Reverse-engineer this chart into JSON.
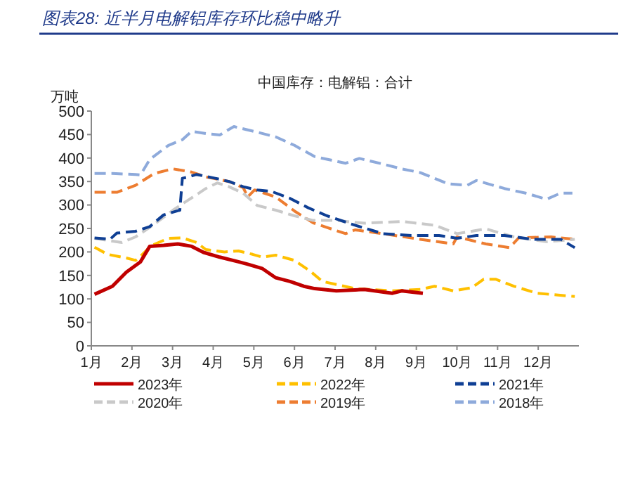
{
  "chart_data": {
    "type": "line",
    "title": "图表28: 近半月电解铝库存环比稳中略升",
    "subtitle": "中国库存：电解铝：合计",
    "ylabel": "万吨",
    "xlim": [
      1,
      13
    ],
    "xticks": [
      {
        "value": 1,
        "label": "1月"
      },
      {
        "value": 2,
        "label": "2月"
      },
      {
        "value": 3,
        "label": "3月"
      },
      {
        "value": 4,
        "label": "4月"
      },
      {
        "value": 5,
        "label": "5月"
      },
      {
        "value": 6,
        "label": "6月"
      },
      {
        "value": 7,
        "label": "7月"
      },
      {
        "value": 8,
        "label": "8月"
      },
      {
        "value": 9,
        "label": "9月"
      },
      {
        "value": 10,
        "label": "10月"
      },
      {
        "value": 11,
        "label": "11月"
      },
      {
        "value": 12,
        "label": "12月"
      }
    ],
    "ylim": [
      0,
      500
    ],
    "yticks": [
      0,
      50,
      100,
      150,
      200,
      250,
      300,
      350,
      400,
      450,
      500
    ],
    "legend": "bottom",
    "series": [
      {
        "name": "2023年",
        "color": "#c00000",
        "line_style": "solid",
        "x": [
          1.08,
          1.52,
          1.86,
          2.21,
          2.44,
          2.78,
          3.13,
          3.47,
          3.76,
          4.16,
          4.62,
          4.85,
          5.2,
          5.54,
          5.89,
          6.23,
          6.5,
          7.03,
          7.72,
          8.41,
          8.64,
          9.16
        ],
        "values": [
          110,
          127,
          157,
          179,
          212,
          214,
          217,
          212,
          199,
          189,
          179,
          174,
          165,
          145,
          137,
          127,
          122,
          117,
          120,
          112,
          117,
          112
        ]
      },
      {
        "name": "2022年",
        "color": "#ffc000",
        "line_style": "dashed",
        "x": [
          1.08,
          1.4,
          1.86,
          2.09,
          2.26,
          2.49,
          2.9,
          3.24,
          3.59,
          3.82,
          4.28,
          4.62,
          4.97,
          5.2,
          5.54,
          6.0,
          6.4,
          6.69,
          7.49,
          8.41,
          9.1,
          9.45,
          9.91,
          10.37,
          10.66,
          10.95,
          11.4,
          11.98,
          12.9
        ],
        "values": [
          210,
          195,
          187,
          182,
          195,
          214,
          229,
          230,
          220,
          205,
          200,
          202,
          195,
          189,
          193,
          182,
          158,
          137,
          122,
          117,
          120,
          127,
          117,
          124,
          142,
          142,
          127,
          112,
          105
        ]
      },
      {
        "name": "2021年",
        "color": "#0f3f94",
        "line_style": "dashed",
        "x": [
          1.08,
          1.46,
          1.63,
          2.09,
          2.44,
          2.78,
          3.18,
          3.24,
          3.36,
          3.59,
          4.05,
          4.39,
          4.74,
          5.08,
          5.43,
          5.89,
          6.34,
          6.8,
          7.49,
          8.18,
          8.87,
          9.56,
          10.0,
          10.48,
          11.17,
          11.86,
          12.55,
          12.9
        ],
        "values": [
          230,
          227,
          240,
          244,
          254,
          279,
          289,
          357,
          359,
          365,
          357,
          350,
          339,
          332,
          329,
          314,
          294,
          277,
          257,
          239,
          235,
          235,
          229,
          235,
          235,
          227,
          227,
          209
        ]
      },
      {
        "name": "2020年",
        "color": "#c9c9c9",
        "line_style": "dashed",
        "x": [
          1.08,
          1.75,
          2.09,
          2.55,
          3.01,
          3.36,
          3.59,
          3.82,
          4.1,
          4.39,
          4.74,
          5.08,
          5.54,
          6.0,
          6.46,
          7.03,
          7.72,
          8.64,
          9.45,
          10.0,
          10.71,
          11.4,
          12.2,
          12.9
        ],
        "values": [
          229,
          220,
          232,
          259,
          289,
          309,
          322,
          335,
          347,
          339,
          325,
          299,
          289,
          277,
          267,
          267,
          261,
          265,
          257,
          239,
          249,
          232,
          222,
          227
        ]
      },
      {
        "name": "2019年",
        "color": "#ed7d31",
        "line_style": "dashed",
        "x": [
          1.08,
          1.63,
          2.09,
          2.55,
          3.01,
          3.47,
          3.82,
          4.39,
          4.74,
          4.85,
          5.02,
          5.54,
          6.0,
          6.46,
          6.8,
          7.26,
          7.49,
          8.18,
          9.1,
          9.91,
          10.0,
          10.71,
          11.29,
          11.52,
          12.32,
          12.9
        ],
        "values": [
          327,
          327,
          342,
          367,
          377,
          370,
          360,
          350,
          337,
          317,
          332,
          317,
          287,
          262,
          252,
          239,
          247,
          239,
          227,
          217,
          232,
          217,
          209,
          230,
          232,
          227
        ]
      },
      {
        "name": "2018年",
        "color": "#8eaadb",
        "line_style": "dashed",
        "x": [
          1.08,
          1.52,
          2.09,
          2.21,
          2.44,
          2.9,
          3.24,
          3.47,
          3.82,
          4.16,
          4.51,
          5.08,
          5.54,
          6.0,
          6.5,
          7.26,
          7.6,
          8.18,
          8.64,
          9.1,
          9.79,
          10.25,
          10.48,
          11.17,
          11.75,
          12.2,
          12.55,
          12.84
        ],
        "values": [
          367,
          367,
          365,
          364,
          397,
          427,
          439,
          457,
          452,
          449,
          467,
          455,
          445,
          427,
          403,
          389,
          399,
          387,
          377,
          369,
          345,
          342,
          352,
          335,
          324,
          312,
          325,
          325
        ]
      }
    ]
  }
}
